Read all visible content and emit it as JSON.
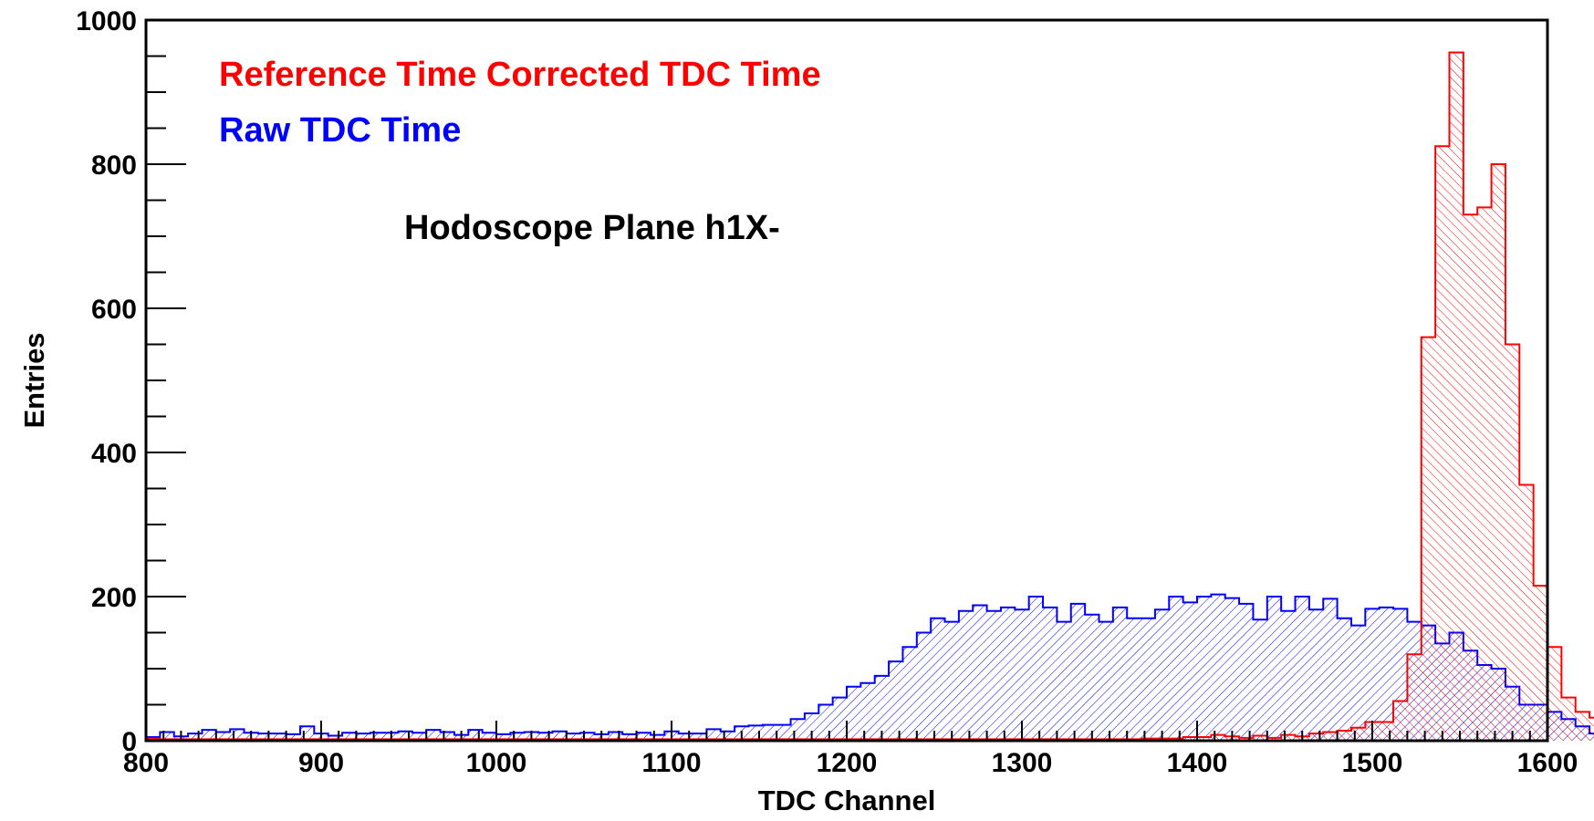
{
  "chart_data": {
    "type": "bar",
    "title": "Hodoscope Plane h1X-",
    "xlabel": "TDC Channel",
    "ylabel": "Entries",
    "xlim": [
      800,
      1600
    ],
    "ylim": [
      0,
      1000
    ],
    "xticks": [
      "800",
      "900",
      "1000",
      "1100",
      "1200",
      "1300",
      "1400",
      "1500",
      "1600"
    ],
    "yticks": [
      "0",
      "200",
      "400",
      "600",
      "800",
      "1000"
    ],
    "bin_width": 8,
    "bin_start": 800,
    "legend_position": "top-left",
    "grid": false,
    "series": [
      {
        "name": "Reference Time Corrected TDC Time",
        "color": "#ff0000",
        "fill": "hatch-right",
        "values": [
          3,
          2,
          2,
          2,
          2,
          2,
          2,
          2,
          2,
          2,
          2,
          2,
          2,
          2,
          2,
          2,
          2,
          2,
          2,
          2,
          2,
          2,
          2,
          2,
          2,
          2,
          2,
          2,
          2,
          2,
          2,
          2,
          2,
          2,
          2,
          2,
          2,
          2,
          2,
          2,
          2,
          2,
          2,
          2,
          2,
          2,
          2,
          2,
          2,
          2,
          2,
          2,
          2,
          2,
          2,
          2,
          2,
          2,
          2,
          2,
          2,
          2,
          2,
          2,
          2,
          2,
          2,
          2,
          2,
          2,
          2,
          3,
          3,
          3,
          5,
          5,
          8,
          6,
          4,
          7,
          4,
          8,
          6,
          10,
          12,
          14,
          18,
          26,
          26,
          55,
          120,
          560,
          825,
          955,
          730,
          740,
          800,
          550,
          355,
          215,
          130,
          60,
          40,
          32,
          22,
          15,
          12,
          10,
          10,
          8,
          5,
          5,
          3,
          3,
          3,
          2,
          2,
          2,
          3,
          2,
          2,
          2,
          2,
          2,
          2,
          2,
          2,
          2,
          2,
          2,
          2,
          2,
          2,
          2,
          2,
          2,
          2,
          2,
          2,
          2,
          2,
          2,
          2,
          2,
          2,
          2,
          2,
          2,
          2,
          2,
          2,
          2,
          2,
          2,
          2,
          2,
          2,
          2
        ]
      },
      {
        "name": "Raw TDC Time",
        "color": "#0000ff",
        "fill": "hatch-left",
        "values": [
          5,
          12,
          6,
          10,
          15,
          12,
          16,
          11,
          10,
          10,
          9,
          20,
          10,
          7,
          11,
          10,
          11,
          11,
          13,
          11,
          15,
          12,
          8,
          15,
          11,
          9,
          11,
          12,
          11,
          13,
          10,
          11,
          9,
          12,
          9,
          11,
          8,
          13,
          10,
          10,
          16,
          13,
          20,
          21,
          22,
          22,
          30,
          38,
          50,
          60,
          75,
          80,
          90,
          110,
          130,
          150,
          170,
          165,
          180,
          188,
          180,
          185,
          182,
          200,
          185,
          165,
          190,
          175,
          165,
          185,
          170,
          170,
          182,
          200,
          192,
          200,
          203,
          198,
          190,
          168,
          200,
          180,
          200,
          182,
          197,
          170,
          160,
          183,
          185,
          183,
          165,
          160,
          135,
          150,
          125,
          105,
          100,
          75,
          50,
          50,
          40,
          30,
          20,
          10,
          5,
          4,
          4,
          4,
          3,
          3,
          4,
          4,
          3,
          3,
          3,
          5,
          3,
          3,
          3,
          2,
          3,
          3,
          3,
          3,
          3,
          3,
          3,
          4,
          3,
          3,
          3,
          3,
          3,
          3,
          3,
          3,
          3,
          3,
          3,
          3,
          3,
          3,
          3,
          3,
          3,
          3,
          3,
          3,
          3,
          3,
          3,
          3,
          3,
          3,
          3,
          3,
          3,
          3
        ]
      }
    ]
  }
}
